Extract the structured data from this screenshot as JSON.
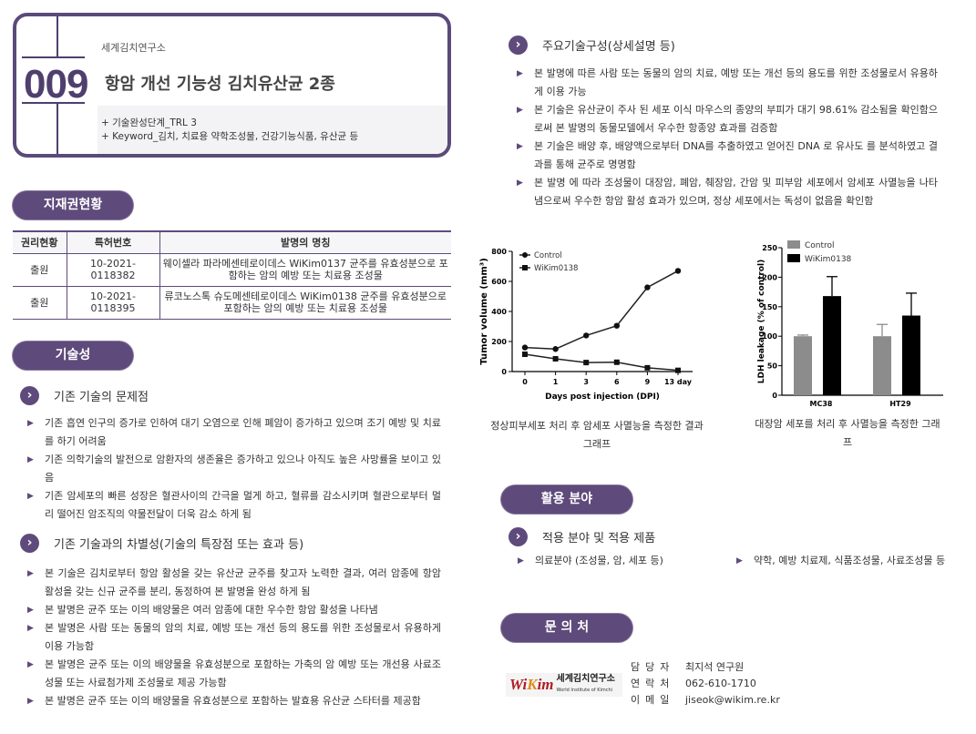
{
  "header": {
    "number": "009",
    "org": "세계김치연구소",
    "title": "항암 개선 기능성 김치유산균 2종",
    "trl": "+ 기술완성단계_TRL 3",
    "keyword": "+ Keyword_김치, 치료용 약학조성물, 건강기능식품, 유산균 등"
  },
  "ip": {
    "pill": "지재권현황",
    "columns": [
      "권리현황",
      "특허번호",
      "발명의 명칭"
    ],
    "rows": [
      {
        "status": "출원",
        "number": "10-2021-0118382",
        "name": "웨이셀라 파라메센테로이데스 WiKim0137 균주를 유효성분으로 포함하는 암의 예방 또는 치료용 조성물"
      },
      {
        "status": "출원",
        "number": "10-2021-0118395",
        "name": "류코노스톡 슈도메센테로이데스 WiKim0138 균주를 유효성분으로 포함하는 암의 예방 또는 치료용 조성물"
      }
    ]
  },
  "tech": {
    "pill": "기술성",
    "problems": {
      "title": "기존 기술의 문제점",
      "items": [
        "기존 흡연 인구의 증가로 인하여 대기 오염으로 인해 폐암이 증가하고 있으며 조기 예방 및 치료를 하기 어려움",
        "기존 의학기술의 발전으로 암환자의 생존율은 증가하고 있으나 아직도 높은 사망률을 보이고 있음",
        "기존 암세포의 빠른 성장은 혈관사이의 간극을 멀게 하고, 혈류를 감소시키며 혈관으로부터 멀리 떨어진 암조직의 약물전달이 더욱 감소 하게 됨"
      ]
    },
    "diff": {
      "title": "기존 기술과의 차별성(기술의 특장점 또는 효과 등)",
      "items": [
        "본 기술은 김치로부터 항암 활성을 갖는 유산균 균주를 찾고자 노력한 결과, 여러 암종에 항암 활성을 갖는 신규 균주를 분리, 동정하여 본 발명을 완성 하게 됨",
        "본 발명은 균주 또는 이의 배양물은 여러 암종에 대한 우수한 항암 활성을 나타냄",
        "본 발명은 사람 또는 동물의 암의 치료, 예방 또는 개선 등의 용도를 위한 조성물로서 유용하게 이용 가능함",
        "본 발명은 균주 또는 이의 배양물을 유효성분으로 포함하는 가축의 암 예방 또는 개선용 사료조성물 또는 사료첨가제 조성물로 제공 가능함",
        "본 발명은 균주 또는 이의 배양물을 유효성분으로 포함하는 발효용 유산균 스타터를 제공함"
      ]
    },
    "main": {
      "title": "주요기술구성(상세설명 등)",
      "items": [
        "본 발명에 따른 사람 또는 동물의 암의 치료, 예방 또는 개선 등의 용도를 위한 조성물로서 유용하게 이용 가능",
        "본 기술은 유산균이 주사 된 세포 이식 마우스의 종양의 부피가 대기 98.61% 감소됨을 확인함으로써 본 발명의 동물모델에서 우수한 항종양 효과를 검증함",
        "본 기술은 배양 후, 배양액으로부터 DNA를 추출하였고 얻어진 DNA 로 유사도 를 분석하였고 결과를 통해 균주로 명명함",
        "본 발명 에 따라 조성물이 대장암, 폐암, 췌장암, 간암 및 피부암 세포에서 암세포 사멸능을 나타냄으로써 우수한 항암 활성 효과가 있으며, 정상 세포에서는 독성이 없음을 확인함"
      ]
    }
  },
  "chart_data": [
    {
      "type": "line",
      "xlabel": "Days post injection (DPI)",
      "ylabel": "Tumor volume (mm³)",
      "categories": [
        "0",
        "1",
        "3",
        "6",
        "9",
        "13 day"
      ],
      "ylim": [
        0,
        800
      ],
      "yticks": [
        0,
        200,
        400,
        600,
        800
      ],
      "legend": "top-left",
      "series": [
        {
          "name": "Control",
          "marker": "circle",
          "values": [
            160,
            150,
            240,
            305,
            560,
            670
          ]
        },
        {
          "name": "WiKim0138",
          "marker": "square",
          "values": [
            115,
            85,
            60,
            62,
            25,
            8
          ]
        }
      ],
      "caption": "정상피부세포 처리 후 암세포 사멸능을 측정한 결과 그래프"
    },
    {
      "type": "bar",
      "ylabel": "LDH leakage (% of control)",
      "categories": [
        "MC38",
        "HT29"
      ],
      "ylim": [
        0,
        250
      ],
      "yticks": [
        0,
        50,
        100,
        150,
        200,
        250
      ],
      "legend": "top-left",
      "series": [
        {
          "name": "Control",
          "color": "#8c8c8c",
          "values": [
            100,
            100
          ],
          "errors": [
            2,
            20
          ]
        },
        {
          "name": "WiKim0138",
          "color": "#000000",
          "values": [
            168,
            135
          ],
          "errors": [
            33,
            38
          ]
        }
      ],
      "caption": "대장암 세포를 처리 후 사멸능을 측정한 그래프"
    }
  ],
  "application": {
    "pill": "활용 분야",
    "title": "적용 분야 및 적용 제품",
    "items": [
      "의료분야 (조성물, 암, 세포 등)",
      "약학, 예방 치료제, 식품조성물, 사료조성물 등"
    ]
  },
  "contact": {
    "pill": "문 의 처",
    "logo": "WiKim 세계김치연구소 World Institute of Kimchi",
    "rows": [
      {
        "k": "담당자",
        "v": "최지석 연구원"
      },
      {
        "k": "연락처",
        "v": "062-610-1710"
      },
      {
        "k": "이메일",
        "v": "jiseok@wikim.re.kr"
      }
    ]
  },
  "colors": {
    "accent": "#5e4a7b"
  }
}
